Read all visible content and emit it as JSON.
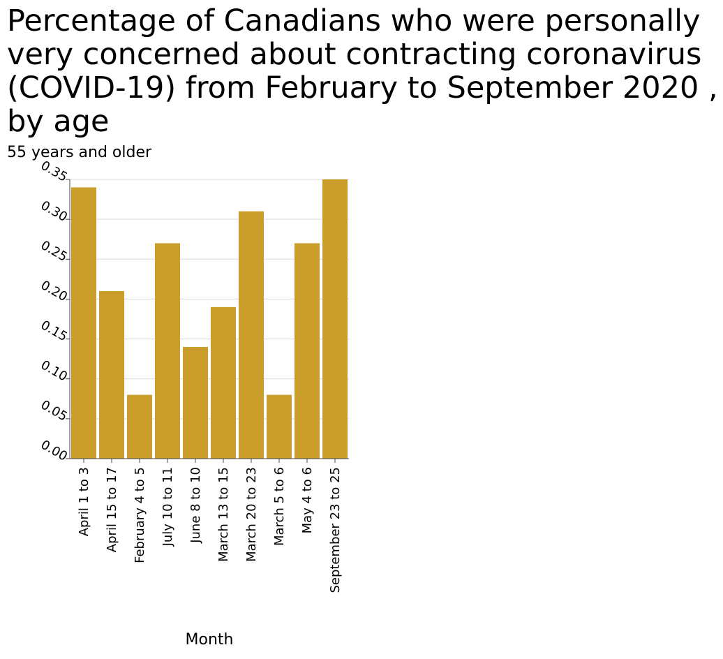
{
  "chart_data": {
    "type": "bar",
    "title": "Percentage of Canadians who were personally very concerned about contracting coronavirus (COVID-19) from February to September 2020 , by age",
    "ylabel": "55 years and older",
    "xlabel": "Month",
    "categories": [
      "April 1 to 3",
      "April 15 to 17",
      "February 4 to 5",
      "July 10 to 11",
      "June 8 to 10",
      "March 13 to 15",
      "March 20 to 23",
      "March 5 to 6",
      "May 4 to 6",
      "September 23 to 25"
    ],
    "values": [
      0.34,
      0.21,
      0.08,
      0.27,
      0.14,
      0.19,
      0.31,
      0.08,
      0.27,
      0.35
    ],
    "ylim": [
      0,
      0.35
    ],
    "yticks": [
      "0.00",
      "0.05",
      "0.10",
      "0.15",
      "0.20",
      "0.25",
      "0.30",
      "0.35"
    ],
    "grid": true,
    "bar_color": "#c99e2b"
  }
}
